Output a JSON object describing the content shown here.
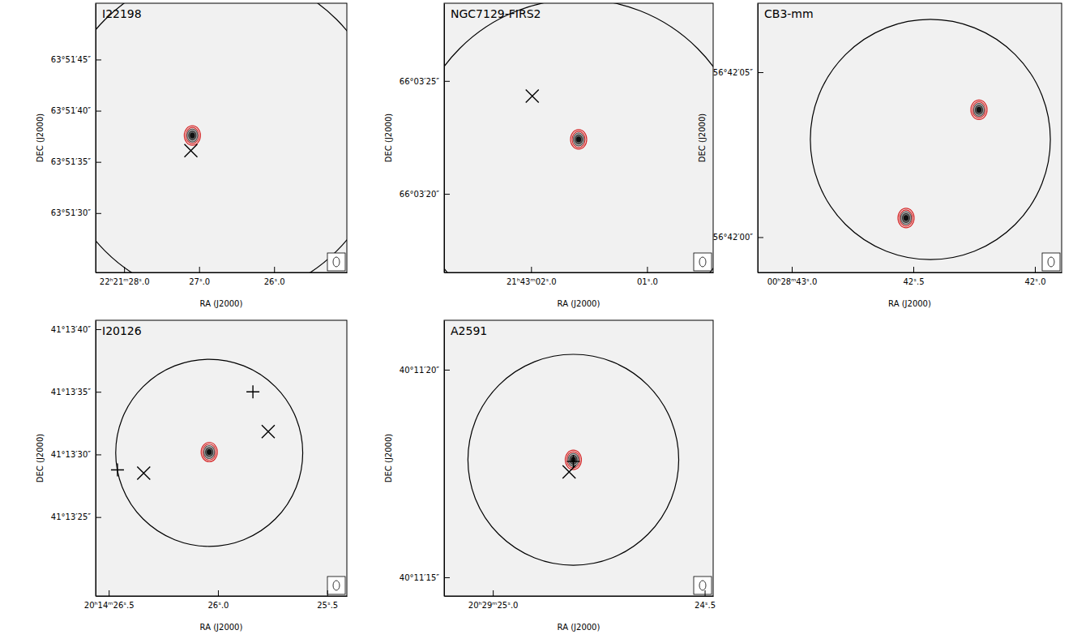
{
  "chart_data": [
    {
      "type": "image",
      "title": "I22198",
      "xlabel": "RA (J2000)",
      "ylabel": "DEC (J2000)",
      "xlim": [
        28.38,
        25.03
      ],
      "ylim": [
        24.2,
        50.5
      ],
      "xticks": [
        {
          "value": 28.0,
          "label": "22ʰ21ᵐ28ˢ.0"
        },
        {
          "value": 27.0,
          "label": "27ˢ.0"
        },
        {
          "value": 26.0,
          "label": "26ˢ.0"
        }
      ],
      "yticks": [
        {
          "value": 45,
          "label": "63°51′45″"
        },
        {
          "value": 40,
          "label": "63°51′40″"
        },
        {
          "value": 35,
          "label": "63°51′35″"
        },
        {
          "value": 30,
          "label": "63°51′30″"
        }
      ],
      "series": [
        {
          "type": "circle",
          "color": "#000000",
          "x": [
            26.71
          ],
          "y": [
            37.6
          ],
          "radius": [
            16.0
          ]
        },
        {
          "type": "contour",
          "color": "#d62728",
          "x": [
            27.09
          ],
          "y": [
            37.58
          ]
        },
        {
          "type": "scatter",
          "marker": "x",
          "color": "#000000",
          "x": [
            27.11
          ],
          "y": [
            36.1
          ]
        }
      ]
    },
    {
      "type": "image",
      "title": "NGC7129-FIRS2",
      "xlabel": "RA (J2000)",
      "ylabel": "DEC (J2000)",
      "xlim": [
        2.75,
        0.43
      ],
      "ylim": [
        16.52,
        28.44
      ],
      "xticks": [
        {
          "value": 2.0,
          "label": "21ʰ43ᵐ02ˢ.0"
        },
        {
          "value": 1.0,
          "label": "01ˢ.0"
        }
      ],
      "yticks": [
        {
          "value": 25,
          "label": "66°03′25″"
        },
        {
          "value": 20,
          "label": "66°03′20″"
        }
      ],
      "series": [
        {
          "type": "circle",
          "color": "#000000",
          "x": [
            1.59
          ],
          "y": [
            21.17
          ],
          "radius": [
            7.45
          ]
        },
        {
          "type": "contour",
          "color": "#d62728",
          "x": [
            1.59
          ],
          "y": [
            22.41
          ]
        },
        {
          "type": "scatter",
          "marker": "x",
          "color": "#000000",
          "x": [
            1.99
          ],
          "y": [
            24.33
          ]
        }
      ]
    },
    {
      "type": "image",
      "title": "CB3-mm",
      "xlabel": "RA (J2000)",
      "ylabel": "DEC (J2000)",
      "xlim": [
        43.14,
        41.89
      ],
      "ylim": [
        -1.07,
        7.09
      ],
      "xticks": [
        {
          "value": 43.0,
          "label": "00ʰ28ᵐ43ˢ.0"
        },
        {
          "value": 42.5,
          "label": "42ˢ.5"
        },
        {
          "value": 42.0,
          "label": "42ˢ.0"
        }
      ],
      "yticks": [
        {
          "value": 5,
          "label": "56°42′05″"
        },
        {
          "value": 0,
          "label": "56°42′00″"
        }
      ],
      "series": [
        {
          "type": "circle",
          "color": "#000000",
          "x": [
            42.43
          ],
          "y": [
            2.96
          ],
          "radius": [
            3.64
          ]
        },
        {
          "type": "contour",
          "color": "#d62728",
          "x": [
            42.23,
            42.53
          ],
          "y": [
            3.86,
            0.58
          ]
        }
      ]
    },
    {
      "type": "image",
      "title": "I20126",
      "xlabel": "RA (J2000)",
      "ylabel": "DEC (J2000)",
      "xlim": [
        26.56,
        25.41
      ],
      "ylim": [
        18.7,
        40.71
      ],
      "xticks": [
        {
          "value": 26.5,
          "label": "20ʰ14ᵐ26ˢ.5"
        },
        {
          "value": 26.0,
          "label": "26ˢ.0"
        },
        {
          "value": 25.5,
          "label": "25ˢ.5"
        }
      ],
      "yticks": [
        {
          "value": 40,
          "label": "41°13′40″"
        },
        {
          "value": 35,
          "label": "41°13′35″"
        },
        {
          "value": 30,
          "label": "41°13′30″"
        },
        {
          "value": 25,
          "label": "41°13′25″"
        }
      ],
      "series": [
        {
          "type": "circle",
          "color": "#000000",
          "x": [
            26.04
          ],
          "y": [
            30.13
          ],
          "radius": [
            7.47
          ]
        },
        {
          "type": "contour",
          "color": "#d62728",
          "x": [
            26.04
          ],
          "y": [
            30.19
          ]
        },
        {
          "type": "scatter",
          "marker": "x",
          "color": "#000000",
          "x": [
            25.77,
            26.34
          ],
          "y": [
            31.82,
            28.51
          ]
        },
        {
          "type": "scatter",
          "marker": "plus",
          "color": "#000000",
          "x": [
            25.84,
            26.46
          ],
          "y": [
            35.0,
            28.77
          ]
        }
      ]
    },
    {
      "type": "image",
      "title": "A2591",
      "xlabel": "RA (J2000)",
      "ylabel": "DEC (J2000)",
      "xlim": [
        25.115,
        24.48
      ],
      "ylim": [
        14.55,
        21.19
      ],
      "xticks": [
        {
          "value": 25.0,
          "label": "20ʰ29ᵐ25ˢ.0"
        },
        {
          "value": 24.5,
          "label": "24ˢ.5"
        }
      ],
      "yticks": [
        {
          "value": 20,
          "label": "40°11′20″"
        },
        {
          "value": 15,
          "label": "40°11′15″"
        }
      ],
      "series": [
        {
          "type": "circle",
          "color": "#000000",
          "x": [
            24.81
          ],
          "y": [
            17.83
          ],
          "radius": [
            2.54
          ]
        },
        {
          "type": "contour",
          "color": "#d62728",
          "x": [
            24.81
          ],
          "y": [
            17.83
          ]
        },
        {
          "type": "scatter",
          "marker": "x",
          "color": "#000000",
          "x": [
            24.82
          ],
          "y": [
            17.54
          ]
        },
        {
          "type": "scatter",
          "marker": "plus",
          "color": "#000000",
          "x": [
            24.81
          ],
          "y": [
            17.79
          ]
        }
      ]
    }
  ]
}
